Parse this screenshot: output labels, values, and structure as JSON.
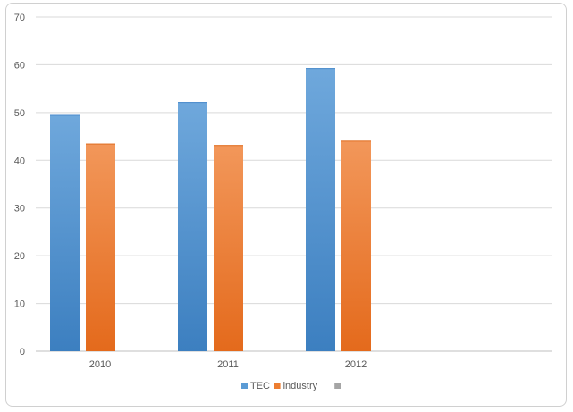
{
  "chart_data": {
    "type": "bar",
    "title": "",
    "xlabel": "",
    "ylabel": "",
    "categories": [
      "2010",
      "2011",
      "2012"
    ],
    "series": [
      {
        "name": "TEC",
        "values": [
          49.5,
          52.2,
          59.3
        ],
        "color": "#5b9bd5"
      },
      {
        "name": "industry",
        "values": [
          43.5,
          43.2,
          44.1
        ],
        "color": "#ed7d31"
      },
      {
        "name": "",
        "values": [
          0,
          0,
          0
        ],
        "color": "#a5a5a5"
      }
    ],
    "ylim": [
      0,
      70
    ],
    "yticks": [
      "0",
      "10",
      "20",
      "30",
      "40",
      "50",
      "60",
      "70"
    ],
    "grid": true,
    "legend_position": "bottom"
  }
}
